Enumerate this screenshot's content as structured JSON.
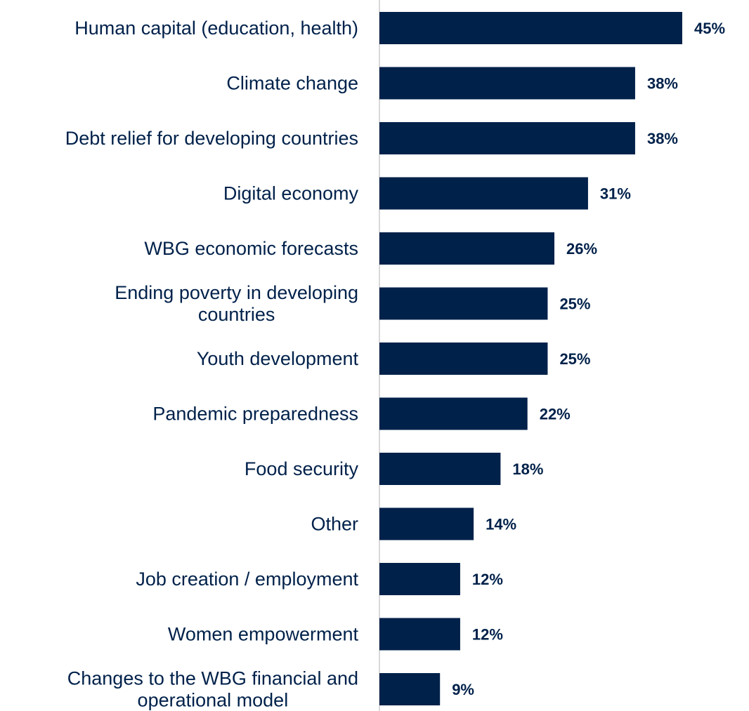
{
  "chart_data": {
    "type": "bar",
    "orientation": "horizontal",
    "categories": [
      [
        "Human capital (education, health)"
      ],
      [
        "Climate change"
      ],
      [
        "Debt relief for developing countries"
      ],
      [
        "Digital economy"
      ],
      [
        "WBG economic forecasts"
      ],
      [
        "Ending poverty in developing",
        "countries"
      ],
      [
        "Youth development"
      ],
      [
        "Pandemic preparedness"
      ],
      [
        "Food security"
      ],
      [
        "Other"
      ],
      [
        "Job creation / employment"
      ],
      [
        "Women empowerment"
      ],
      [
        "Changes to the WBG financial and",
        "operational model"
      ]
    ],
    "values": [
      45,
      38,
      38,
      31,
      26,
      25,
      25,
      22,
      18,
      14,
      12,
      12,
      9
    ],
    "value_labels": [
      "45%",
      "38%",
      "38%",
      "31%",
      "26%",
      "25%",
      "25%",
      "22%",
      "18%",
      "14%",
      "12%",
      "12%",
      "9%"
    ],
    "unit": "%",
    "xlim": [
      0,
      45
    ],
    "grid": false,
    "legend": "none",
    "colors": {
      "bar": "#00214a",
      "label": "#00214a",
      "axis": "#d9d9d9"
    }
  }
}
